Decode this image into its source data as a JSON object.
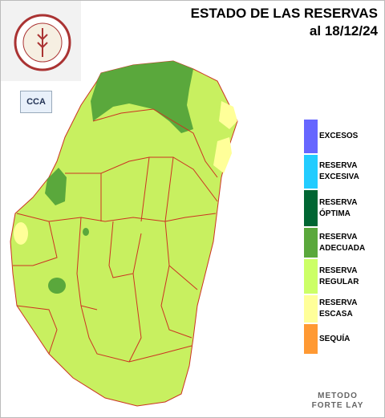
{
  "header": {
    "title": "ESTADO DE LAS RESERVAS",
    "date": "al 18/12/24"
  },
  "logo": {
    "badge": "CCA"
  },
  "legend": [
    {
      "label": "EXCESOS",
      "color": "#6666ff"
    },
    {
      "label": "RESERVA EXCESIVA",
      "color": "#22ccff"
    },
    {
      "label": "RESERVA ÓPTIMA",
      "color": "#006633"
    },
    {
      "label": "RESERVA ADECUADA",
      "color": "#5aa83c"
    },
    {
      "label": "RESERVA REGULAR",
      "color": "#ccff66"
    },
    {
      "label": "RESERVA ESCASA",
      "color": "#ffff99"
    },
    {
      "label": "SEQUÍA",
      "color": "#ff9933"
    }
  ],
  "footer": {
    "method": "METODO FORTE LAY"
  }
}
